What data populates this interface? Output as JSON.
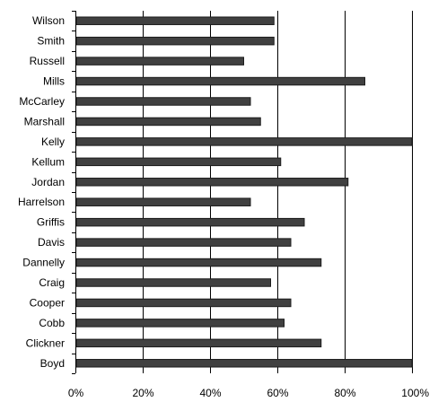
{
  "chart_data": {
    "type": "bar",
    "orientation": "horizontal",
    "title": "",
    "xlabel": "",
    "ylabel": "",
    "categories": [
      "Wilson",
      "Smith",
      "Russell",
      "Mills",
      "McCarley",
      "Marshall",
      "Kelly",
      "Kellum",
      "Jordan",
      "Harrelson",
      "Griffis",
      "Davis",
      "Dannelly",
      "Craig",
      "Cooper",
      "Cobb",
      "Clickner",
      "Boyd"
    ],
    "values": [
      59,
      59,
      50,
      86,
      52,
      55,
      100,
      61,
      81,
      52,
      68,
      64,
      73,
      58,
      64,
      62,
      73,
      100
    ],
    "xlim": [
      0,
      100
    ],
    "xticks": [
      "0%",
      "20%",
      "40%",
      "60%",
      "80%",
      "100%"
    ],
    "grid": true,
    "legend": "none",
    "colors": {
      "bar": "#404040",
      "gridline": "#000000"
    }
  }
}
